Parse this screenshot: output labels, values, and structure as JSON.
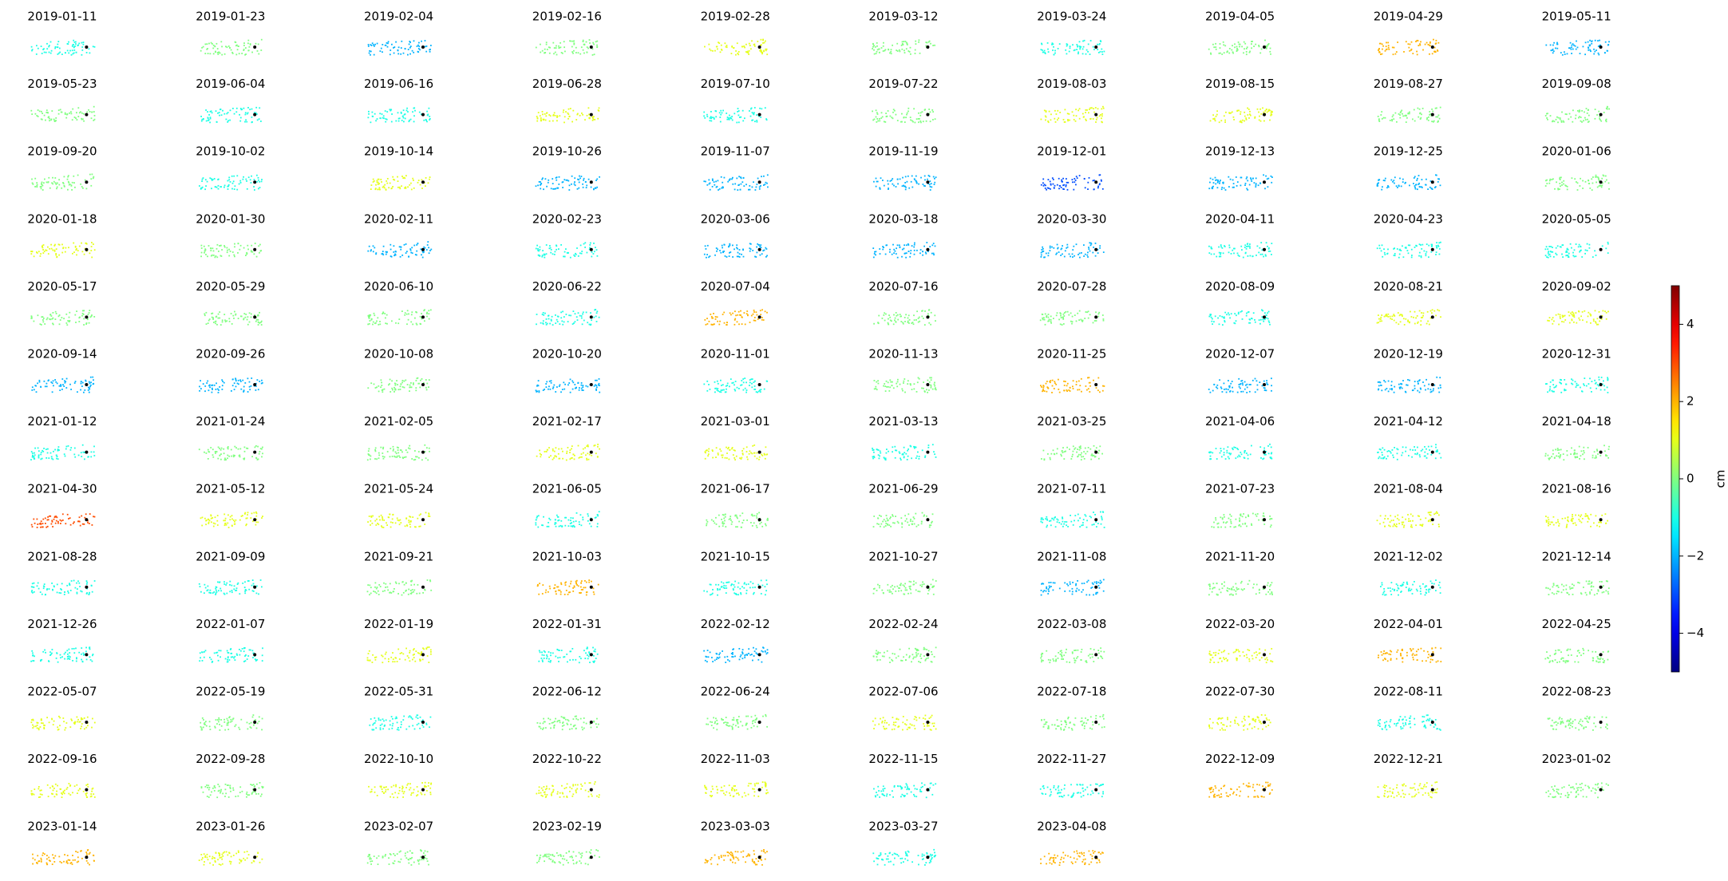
{
  "chart_data": {
    "type": "scatter-grid",
    "panels": [
      {
        "title": "2019-01-11",
        "value": -1
      },
      {
        "title": "2019-01-23",
        "value": 0
      },
      {
        "title": "2019-02-04",
        "value": -2
      },
      {
        "title": "2019-02-16",
        "value": 0
      },
      {
        "title": "2019-02-28",
        "value": 1
      },
      {
        "title": "2019-03-12",
        "value": 0
      },
      {
        "title": "2019-03-24",
        "value": -1
      },
      {
        "title": "2019-04-05",
        "value": 0
      },
      {
        "title": "2019-04-29",
        "value": 2
      },
      {
        "title": "2019-05-11",
        "value": -2
      },
      {
        "title": "2019-05-23",
        "value": 0
      },
      {
        "title": "2019-06-04",
        "value": -1
      },
      {
        "title": "2019-06-16",
        "value": -1
      },
      {
        "title": "2019-06-28",
        "value": 1
      },
      {
        "title": "2019-07-10",
        "value": -1
      },
      {
        "title": "2019-07-22",
        "value": 0
      },
      {
        "title": "2019-08-03",
        "value": 1
      },
      {
        "title": "2019-08-15",
        "value": 1
      },
      {
        "title": "2019-08-27",
        "value": 0
      },
      {
        "title": "2019-09-08",
        "value": 0
      },
      {
        "title": "2019-09-20",
        "value": 0
      },
      {
        "title": "2019-10-02",
        "value": -1
      },
      {
        "title": "2019-10-14",
        "value": 1
      },
      {
        "title": "2019-10-26",
        "value": -2
      },
      {
        "title": "2019-11-07",
        "value": -2
      },
      {
        "title": "2019-11-19",
        "value": -2
      },
      {
        "title": "2019-12-01",
        "value": -3
      },
      {
        "title": "2019-12-13",
        "value": -2
      },
      {
        "title": "2019-12-25",
        "value": -2
      },
      {
        "title": "2020-01-06",
        "value": 0
      },
      {
        "title": "2020-01-18",
        "value": 1
      },
      {
        "title": "2020-01-30",
        "value": 0
      },
      {
        "title": "2020-02-11",
        "value": -2
      },
      {
        "title": "2020-02-23",
        "value": -1
      },
      {
        "title": "2020-03-06",
        "value": -2
      },
      {
        "title": "2020-03-18",
        "value": -2
      },
      {
        "title": "2020-03-30",
        "value": -2
      },
      {
        "title": "2020-04-11",
        "value": -1
      },
      {
        "title": "2020-04-23",
        "value": -1
      },
      {
        "title": "2020-05-05",
        "value": -1
      },
      {
        "title": "2020-05-17",
        "value": 0
      },
      {
        "title": "2020-05-29",
        "value": 0
      },
      {
        "title": "2020-06-10",
        "value": 0
      },
      {
        "title": "2020-06-22",
        "value": -1
      },
      {
        "title": "2020-07-04",
        "value": 2
      },
      {
        "title": "2020-07-16",
        "value": 0
      },
      {
        "title": "2020-07-28",
        "value": 0
      },
      {
        "title": "2020-08-09",
        "value": -1
      },
      {
        "title": "2020-08-21",
        "value": 1
      },
      {
        "title": "2020-09-02",
        "value": 1
      },
      {
        "title": "2020-09-14",
        "value": -2
      },
      {
        "title": "2020-09-26",
        "value": -2
      },
      {
        "title": "2020-10-08",
        "value": 0
      },
      {
        "title": "2020-10-20",
        "value": -2
      },
      {
        "title": "2020-11-01",
        "value": -1
      },
      {
        "title": "2020-11-13",
        "value": 0
      },
      {
        "title": "2020-11-25",
        "value": 2
      },
      {
        "title": "2020-12-07",
        "value": -2
      },
      {
        "title": "2020-12-19",
        "value": -2
      },
      {
        "title": "2020-12-31",
        "value": -1
      },
      {
        "title": "2021-01-12",
        "value": -1
      },
      {
        "title": "2021-01-24",
        "value": 0
      },
      {
        "title": "2021-02-05",
        "value": 0
      },
      {
        "title": "2021-02-17",
        "value": 1
      },
      {
        "title": "2021-03-01",
        "value": 1
      },
      {
        "title": "2021-03-13",
        "value": -1
      },
      {
        "title": "2021-03-25",
        "value": 0
      },
      {
        "title": "2021-04-06",
        "value": -1
      },
      {
        "title": "2021-04-12",
        "value": -1
      },
      {
        "title": "2021-04-18",
        "value": 0
      },
      {
        "title": "2021-04-30",
        "value": 3
      },
      {
        "title": "2021-05-12",
        "value": 1
      },
      {
        "title": "2021-05-24",
        "value": 1
      },
      {
        "title": "2021-06-05",
        "value": -1
      },
      {
        "title": "2021-06-17",
        "value": 0
      },
      {
        "title": "2021-06-29",
        "value": 0
      },
      {
        "title": "2021-07-11",
        "value": -1
      },
      {
        "title": "2021-07-23",
        "value": 0
      },
      {
        "title": "2021-08-04",
        "value": 1
      },
      {
        "title": "2021-08-16",
        "value": 1
      },
      {
        "title": "2021-08-28",
        "value": -1
      },
      {
        "title": "2021-09-09",
        "value": -1
      },
      {
        "title": "2021-09-21",
        "value": 0
      },
      {
        "title": "2021-10-03",
        "value": 2
      },
      {
        "title": "2021-10-15",
        "value": -1
      },
      {
        "title": "2021-10-27",
        "value": 0
      },
      {
        "title": "2021-11-08",
        "value": -2
      },
      {
        "title": "2021-11-20",
        "value": 0
      },
      {
        "title": "2021-12-02",
        "value": -1
      },
      {
        "title": "2021-12-14",
        "value": 0
      },
      {
        "title": "2021-12-26",
        "value": -1
      },
      {
        "title": "2022-01-07",
        "value": -1
      },
      {
        "title": "2022-01-19",
        "value": 1
      },
      {
        "title": "2022-01-31",
        "value": -1
      },
      {
        "title": "2022-02-12",
        "value": -2
      },
      {
        "title": "2022-02-24",
        "value": 0
      },
      {
        "title": "2022-03-08",
        "value": 0
      },
      {
        "title": "2022-03-20",
        "value": 1
      },
      {
        "title": "2022-04-01",
        "value": 2
      },
      {
        "title": "2022-04-25",
        "value": 0
      },
      {
        "title": "2022-05-07",
        "value": 1
      },
      {
        "title": "2022-05-19",
        "value": 0
      },
      {
        "title": "2022-05-31",
        "value": -1
      },
      {
        "title": "2022-06-12",
        "value": 0
      },
      {
        "title": "2022-06-24",
        "value": 0
      },
      {
        "title": "2022-07-06",
        "value": 1
      },
      {
        "title": "2022-07-18",
        "value": 0
      },
      {
        "title": "2022-07-30",
        "value": 1
      },
      {
        "title": "2022-08-11",
        "value": -1
      },
      {
        "title": "2022-08-23",
        "value": 0
      },
      {
        "title": "2022-09-16",
        "value": 1
      },
      {
        "title": "2022-09-28",
        "value": 0
      },
      {
        "title": "2022-10-10",
        "value": 1
      },
      {
        "title": "2022-10-22",
        "value": 1
      },
      {
        "title": "2022-11-03",
        "value": 1
      },
      {
        "title": "2022-11-15",
        "value": -1
      },
      {
        "title": "2022-11-27",
        "value": -1
      },
      {
        "title": "2022-12-09",
        "value": 2
      },
      {
        "title": "2022-12-21",
        "value": 1
      },
      {
        "title": "2023-01-02",
        "value": 0
      },
      {
        "title": "2023-01-14",
        "value": 2
      },
      {
        "title": "2023-01-26",
        "value": 1
      },
      {
        "title": "2023-02-07",
        "value": 0
      },
      {
        "title": "2023-02-19",
        "value": 0
      },
      {
        "title": "2023-03-03",
        "value": 2
      },
      {
        "title": "2023-03-27",
        "value": -1
      },
      {
        "title": "2023-04-08",
        "value": 2
      }
    ],
    "colorbar": {
      "label": "cm",
      "clim": [
        -5,
        5
      ],
      "colormap": "jet",
      "ticks": [
        {
          "value": -4,
          "label": "−4"
        },
        {
          "value": -2,
          "label": "−2"
        },
        0,
        2,
        4
      ]
    },
    "columns": 10
  }
}
